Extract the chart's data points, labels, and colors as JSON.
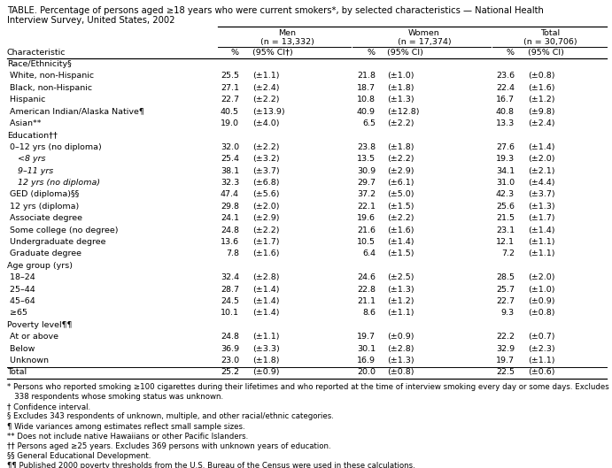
{
  "title_line1": "TABLE. Percentage of persons aged ≥18 years who were current smokers*, by selected characteristics — National Health",
  "title_line2": "Interview Survey, United States, 2002",
  "col_headers": [
    [
      "Men",
      "(n = 13,332)"
    ],
    [
      "Women",
      "(n = 17,374)"
    ],
    [
      "Total",
      "(n = 30,706)"
    ]
  ],
  "sub_headers": [
    "%",
    "(95% CI†)",
    "%",
    "(95% CI)",
    "%",
    "(95% CI)"
  ],
  "char_label": "Characteristic",
  "rows": [
    {
      "label": "Race/Ethnicity§",
      "category": true,
      "italic": false,
      "total": false,
      "values": [
        "",
        "",
        "",
        "",
        "",
        ""
      ]
    },
    {
      "label": " White, non-Hispanic",
      "category": false,
      "italic": false,
      "total": false,
      "values": [
        "25.5",
        "(±1.1)",
        "21.8",
        "(±1.0)",
        "23.6",
        "(±0.8)"
      ]
    },
    {
      "label": " Black, non-Hispanic",
      "category": false,
      "italic": false,
      "total": false,
      "values": [
        "27.1",
        "(±2.4)",
        "18.7",
        "(±1.8)",
        "22.4",
        "(±1.6)"
      ]
    },
    {
      "label": " Hispanic",
      "category": false,
      "italic": false,
      "total": false,
      "values": [
        "22.7",
        "(±2.2)",
        "10.8",
        "(±1.3)",
        "16.7",
        "(±1.2)"
      ]
    },
    {
      "label": " American Indian/Alaska Native¶",
      "category": false,
      "italic": false,
      "total": false,
      "values": [
        "40.5",
        "(±13.9)",
        "40.9",
        "(±12.8)",
        "40.8",
        "(±9.8)"
      ]
    },
    {
      "label": " Asian**",
      "category": false,
      "italic": false,
      "total": false,
      "values": [
        "19.0",
        "(±4.0)",
        "6.5",
        "(±2.2)",
        "13.3",
        "(±2.4)"
      ]
    },
    {
      "label": "Education††",
      "category": true,
      "italic": false,
      "total": false,
      "values": [
        "",
        "",
        "",
        "",
        "",
        ""
      ]
    },
    {
      "label": " 0–12 yrs (no diploma)",
      "category": false,
      "italic": false,
      "total": false,
      "values": [
        "32.0",
        "(±2.2)",
        "23.8",
        "(±1.8)",
        "27.6",
        "(±1.4)"
      ]
    },
    {
      "label": "    <8 yrs",
      "category": false,
      "italic": true,
      "total": false,
      "values": [
        "25.4",
        "(±3.2)",
        "13.5",
        "(±2.2)",
        "19.3",
        "(±2.0)"
      ]
    },
    {
      "label": "    9–11 yrs",
      "category": false,
      "italic": true,
      "total": false,
      "values": [
        "38.1",
        "(±3.7)",
        "30.9",
        "(±2.9)",
        "34.1",
        "(±2.1)"
      ]
    },
    {
      "label": "    12 yrs (no diploma)",
      "category": false,
      "italic": true,
      "total": false,
      "values": [
        "32.3",
        "(±6.8)",
        "29.7",
        "(±6.1)",
        "31.0",
        "(±4.4)"
      ]
    },
    {
      "label": " GED (diploma)§§",
      "category": false,
      "italic": false,
      "total": false,
      "values": [
        "47.4",
        "(±5.6)",
        "37.2",
        "(±5.0)",
        "42.3",
        "(±3.7)"
      ]
    },
    {
      "label": " 12 yrs (diploma)",
      "category": false,
      "italic": false,
      "total": false,
      "values": [
        "29.8",
        "(±2.0)",
        "22.1",
        "(±1.5)",
        "25.6",
        "(±1.3)"
      ]
    },
    {
      "label": " Associate degree",
      "category": false,
      "italic": false,
      "total": false,
      "values": [
        "24.1",
        "(±2.9)",
        "19.6",
        "(±2.2)",
        "21.5",
        "(±1.7)"
      ]
    },
    {
      "label": " Some college (no degree)",
      "category": false,
      "italic": false,
      "total": false,
      "values": [
        "24.8",
        "(±2.2)",
        "21.6",
        "(±1.6)",
        "23.1",
        "(±1.4)"
      ]
    },
    {
      "label": " Undergraduate degree",
      "category": false,
      "italic": false,
      "total": false,
      "values": [
        "13.6",
        "(±1.7)",
        "10.5",
        "(±1.4)",
        "12.1",
        "(±1.1)"
      ]
    },
    {
      "label": " Graduate degree",
      "category": false,
      "italic": false,
      "total": false,
      "values": [
        "7.8",
        "(±1.6)",
        "6.4",
        "(±1.5)",
        "7.2",
        "(±1.1)"
      ]
    },
    {
      "label": "Age group (yrs)",
      "category": true,
      "italic": false,
      "total": false,
      "values": [
        "",
        "",
        "",
        "",
        "",
        ""
      ]
    },
    {
      "label": " 18–24",
      "category": false,
      "italic": false,
      "total": false,
      "values": [
        "32.4",
        "(±2.8)",
        "24.6",
        "(±2.5)",
        "28.5",
        "(±2.0)"
      ]
    },
    {
      "label": " 25–44",
      "category": false,
      "italic": false,
      "total": false,
      "values": [
        "28.7",
        "(±1.4)",
        "22.8",
        "(±1.3)",
        "25.7",
        "(±1.0)"
      ]
    },
    {
      "label": " 45–64",
      "category": false,
      "italic": false,
      "total": false,
      "values": [
        "24.5",
        "(±1.4)",
        "21.1",
        "(±1.2)",
        "22.7",
        "(±0.9)"
      ]
    },
    {
      "label": " ≥65",
      "category": false,
      "italic": false,
      "total": false,
      "values": [
        "10.1",
        "(±1.4)",
        "8.6",
        "(±1.1)",
        "9.3",
        "(±0.8)"
      ]
    },
    {
      "label": "Poverty level¶¶",
      "category": true,
      "italic": false,
      "total": false,
      "values": [
        "",
        "",
        "",
        "",
        "",
        ""
      ]
    },
    {
      "label": " At or above",
      "category": false,
      "italic": false,
      "total": false,
      "values": [
        "24.8",
        "(±1.1)",
        "19.7",
        "(±0.9)",
        "22.2",
        "(±0.7)"
      ]
    },
    {
      "label": " Below",
      "category": false,
      "italic": false,
      "total": false,
      "values": [
        "36.9",
        "(±3.3)",
        "30.1",
        "(±2.8)",
        "32.9",
        "(±2.3)"
      ]
    },
    {
      "label": " Unknown",
      "category": false,
      "italic": false,
      "total": false,
      "values": [
        "23.0",
        "(±1.8)",
        "16.9",
        "(±1.3)",
        "19.7",
        "(±1.1)"
      ]
    },
    {
      "label": "Total",
      "category": false,
      "italic": false,
      "total": true,
      "values": [
        "25.2",
        "(±0.9)",
        "20.0",
        "(±0.8)",
        "22.5",
        "(±0.6)"
      ]
    }
  ],
  "footnotes": [
    "* Persons who reported smoking ≥100 cigarettes during their lifetimes and who reported at the time of interview smoking every day or some days. Excludes",
    "   338 respondents whose smoking status was unknown.",
    "† Confidence interval.",
    "§ Excludes 343 respondents of unknown, multiple, and other racial/ethnic categories.",
    "¶ Wide variances among estimates reflect small sample sizes.",
    "** Does not include native Hawaiians or other Pacific Islanders.",
    "†† Persons aged ≥25 years. Excludes 369 persons with unknown years of education.",
    "§§ General Educational Development.",
    "¶¶ Published 2000 poverty thresholds from the U.S. Bureau of the Census were used in these calculations."
  ],
  "bg_color": "#ffffff",
  "text_color": "#000000",
  "font_size": 6.8,
  "title_font_size": 7.2,
  "footnote_font_size": 6.2
}
